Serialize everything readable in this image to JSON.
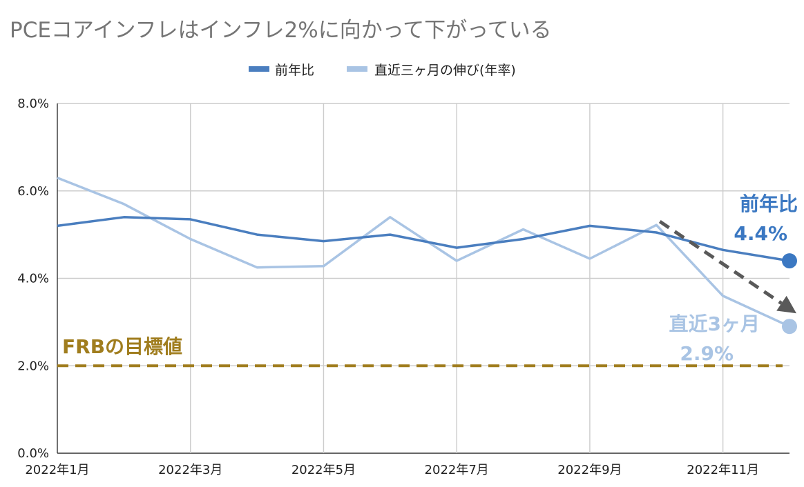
{
  "chart_data": {
    "type": "line",
    "title": "PCEコアインフレはインフレ2%に向かって下がっている",
    "categories": [
      "2022年1月",
      "2022年2月",
      "2022年3月",
      "2022年4月",
      "2022年5月",
      "2022年6月",
      "2022年7月",
      "2022年8月",
      "2022年9月",
      "2022年10月",
      "2022年11月",
      "2022年12月"
    ],
    "x_tick_labels": [
      "2022年1月",
      "2022年3月",
      "2022年5月",
      "2022年7月",
      "2022年9月",
      "2022年11月"
    ],
    "y_tick_labels": [
      "0.0%",
      "2.0%",
      "4.0%",
      "6.0%",
      "8.0%"
    ],
    "ylim": [
      0,
      8
    ],
    "grid": true,
    "legend_position": "top-center",
    "series": [
      {
        "name": "前年比",
        "color": "#4a7ebf",
        "values": [
          5.2,
          5.4,
          5.35,
          5.0,
          4.85,
          5.0,
          4.7,
          4.9,
          5.2,
          5.05,
          4.65,
          4.4
        ]
      },
      {
        "name": "直近三ヶ月の伸び(年率)",
        "color": "#a9c4e4",
        "values": [
          6.3,
          5.7,
          4.9,
          4.25,
          4.28,
          5.4,
          4.4,
          5.12,
          4.45,
          5.22,
          3.6,
          2.9
        ]
      }
    ],
    "reference_line": {
      "label": "FRBの目標値",
      "value": 2.0,
      "color": "#a07d1e"
    },
    "annotations": [
      {
        "line1": "前年比",
        "line2": "4.4%",
        "color": "#3b78c2"
      },
      {
        "line1": "直近3ヶ月",
        "line2": "2.9%",
        "color": "#a9c4e4"
      }
    ],
    "trend_arrow": {
      "from": {
        "x": "2022年10月",
        "y": 5.3
      },
      "to": {
        "x": "2022年12月",
        "y": 3.2
      },
      "color": "#595959"
    }
  }
}
